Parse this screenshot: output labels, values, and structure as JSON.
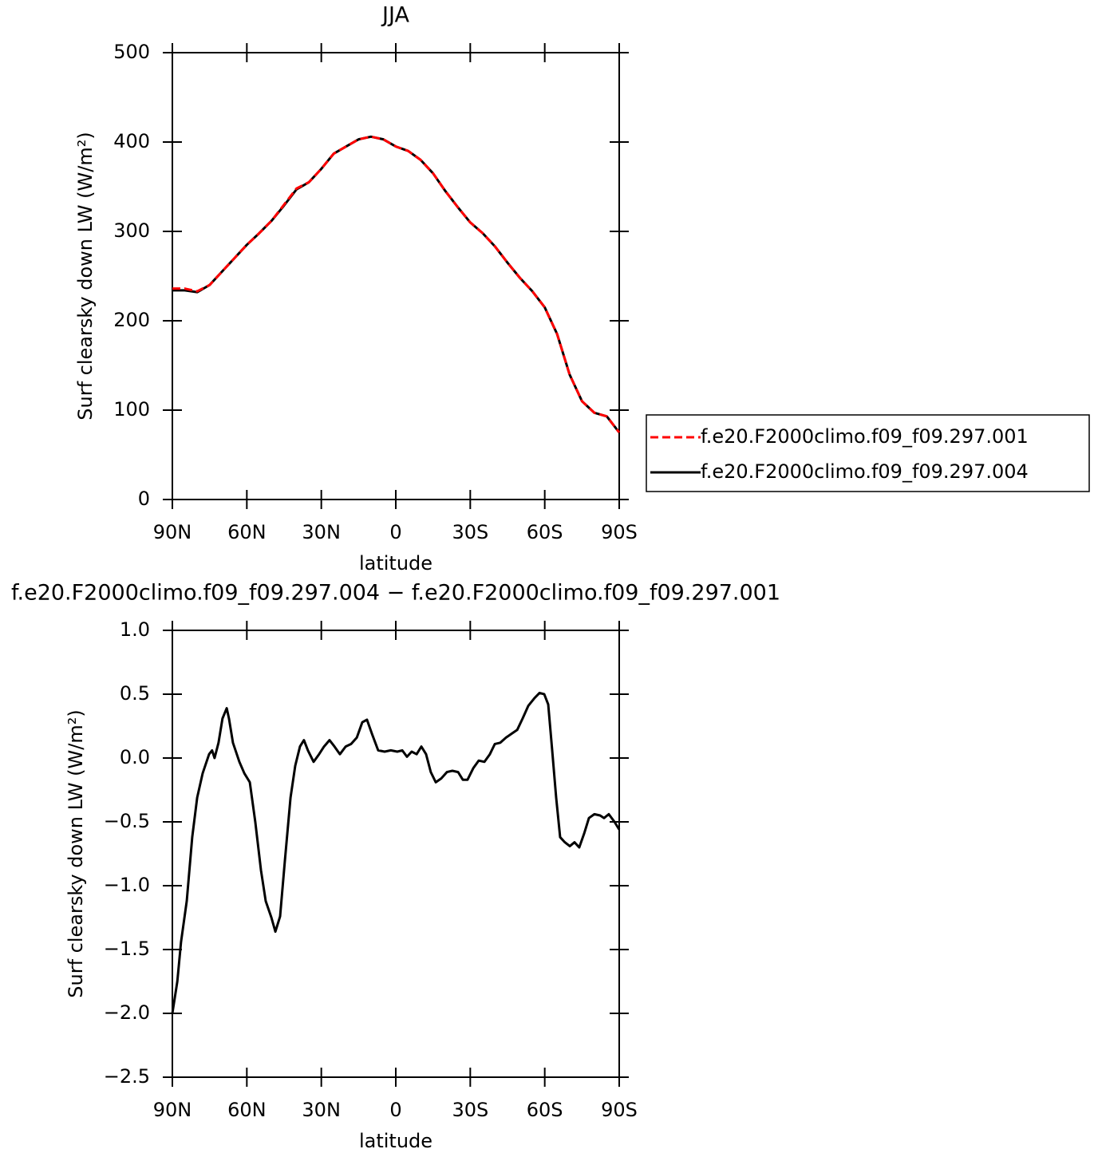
{
  "chart_data": [
    {
      "type": "line",
      "title": "JJA",
      "xlabel": "latitude",
      "ylabel": "Surf clearsky down LW (W/m²)",
      "x": [
        90,
        85,
        80,
        75,
        70,
        65,
        60,
        55,
        50,
        45,
        40,
        35,
        30,
        25,
        20,
        15,
        10,
        5,
        0,
        -5,
        -10,
        -15,
        -20,
        -25,
        -30,
        -35,
        -40,
        -45,
        -50,
        -55,
        -60,
        -65,
        -70,
        -75,
        -80,
        -85,
        -90
      ],
      "series": [
        {
          "name": "f.e20.F2000climo.f09_f09.297.001",
          "color": "#ff0000",
          "linestyle": "dashed",
          "values": [
            236,
            236,
            233,
            240,
            255,
            270,
            285,
            298,
            312,
            330,
            348,
            355,
            370,
            387,
            395,
            403,
            406,
            403,
            395,
            390,
            380,
            365,
            345,
            327,
            310,
            298,
            283,
            265,
            248,
            233,
            215,
            185,
            140,
            110,
            97,
            93,
            75
          ]
        },
        {
          "name": "f.e20.F2000climo.f09_f09.297.004",
          "color": "#000000",
          "linestyle": "solid",
          "values": [
            234,
            234,
            232,
            240,
            255,
            270,
            285,
            298,
            312,
            329,
            347,
            355,
            370,
            387,
            395,
            403,
            406,
            403,
            395,
            390,
            380,
            365,
            345,
            327,
            310,
            298,
            283,
            265,
            248,
            233,
            215,
            185,
            140,
            110,
            97,
            93,
            75
          ]
        }
      ],
      "xlim": [
        90,
        -90
      ],
      "xticks": [
        {
          "value": 90,
          "label": "90N"
        },
        {
          "value": 60,
          "label": "60N"
        },
        {
          "value": 30,
          "label": "30N"
        },
        0,
        {
          "value": -30,
          "label": "30S"
        },
        {
          "value": -60,
          "label": "60S"
        },
        {
          "value": -90,
          "label": "90S"
        }
      ],
      "ylim": [
        0,
        500
      ],
      "yticks": [
        0,
        100,
        200,
        300,
        400,
        500
      ],
      "legend": "right"
    },
    {
      "type": "line",
      "title": "f.e20.F2000climo.f09_f09.297.004 − f.e20.F2000climo.f09_f09.297.001",
      "xlabel": "latitude",
      "ylabel": "Surf clearsky down LW (W/m²)",
      "x": [
        90,
        88,
        86.5,
        84.2,
        82,
        80,
        77.8,
        75.2,
        74,
        73,
        71.4,
        69.8,
        68.1,
        67.2,
        65.6,
        63,
        61,
        58.8,
        56.6,
        54.3,
        52.4,
        50.1,
        48.5,
        46.6,
        44.7,
        42.4,
        40.5,
        38.6,
        37,
        35.4,
        33.1,
        30.9,
        28.9,
        26.7,
        24.7,
        22.5,
        20.2,
        18,
        15.7,
        13.5,
        11.6,
        9.6,
        7.1,
        4.5,
        2,
        -0.6,
        -2.6,
        -4.5,
        -6.4,
        -8.4,
        -10.3,
        -12.2,
        -14.1,
        -16.1,
        -18.3,
        -20.6,
        -22.8,
        -25.1,
        -27,
        -28.9,
        -31.2,
        -33.4,
        -35.7,
        -37.9,
        -39.9,
        -42.1,
        -44.4,
        -46.6,
        -48.9,
        -51.1,
        -53.4,
        -55.9,
        -57.9,
        -59.8,
        -61.4,
        -63,
        -64.6,
        -66.2,
        -68.1,
        -70.1,
        -72,
        -73.9,
        -75.9,
        -77.8,
        -80,
        -82.3,
        -83.9,
        -85.8,
        -88.1,
        -90
      ],
      "series": [
        {
          "color": "#000000",
          "linestyle": "solid",
          "values": [
            -2.0,
            -1.75,
            -1.44,
            -1.12,
            -0.62,
            -0.31,
            -0.12,
            0.03,
            0.06,
            0.0,
            0.12,
            0.31,
            0.39,
            0.31,
            0.12,
            -0.03,
            -0.12,
            -0.19,
            -0.5,
            -0.88,
            -1.12,
            -1.25,
            -1.36,
            -1.24,
            -0.81,
            -0.31,
            -0.06,
            0.09,
            0.14,
            0.06,
            -0.03,
            0.03,
            0.09,
            0.14,
            0.09,
            0.03,
            0.09,
            0.11,
            0.16,
            0.28,
            0.3,
            0.19,
            0.06,
            0.05,
            0.06,
            0.05,
            0.06,
            0.01,
            0.05,
            0.03,
            0.09,
            0.03,
            -0.11,
            -0.19,
            -0.16,
            -0.11,
            -0.1,
            -0.11,
            -0.17,
            -0.17,
            -0.08,
            -0.02,
            -0.03,
            0.03,
            0.11,
            0.12,
            0.16,
            0.19,
            0.22,
            0.31,
            0.41,
            0.47,
            0.51,
            0.5,
            0.42,
            0.06,
            -0.31,
            -0.62,
            -0.66,
            -0.69,
            -0.66,
            -0.7,
            -0.59,
            -0.47,
            -0.44,
            -0.45,
            -0.47,
            -0.44,
            -0.5,
            -0.56
          ]
        }
      ],
      "xlim": [
        90,
        -90
      ],
      "xticks": [
        {
          "value": 90,
          "label": "90N"
        },
        {
          "value": 60,
          "label": "60N"
        },
        {
          "value": 30,
          "label": "30N"
        },
        0,
        {
          "value": -30,
          "label": "30S"
        },
        {
          "value": -60,
          "label": "60S"
        },
        {
          "value": -90,
          "label": "90S"
        }
      ],
      "ylim": [
        -2.5,
        1.0
      ],
      "yticks": [
        {
          "value": -2.5,
          "label": "−2.5"
        },
        {
          "value": -2,
          "label": "−2.0"
        },
        {
          "value": -1.5,
          "label": "−1.5"
        },
        {
          "value": -1,
          "label": "−1.0"
        },
        {
          "value": -0.5,
          "label": "−0.5"
        },
        {
          "value": 0,
          "label": "0.0"
        },
        0.5,
        {
          "value": 1,
          "label": "1.0"
        }
      ]
    }
  ]
}
